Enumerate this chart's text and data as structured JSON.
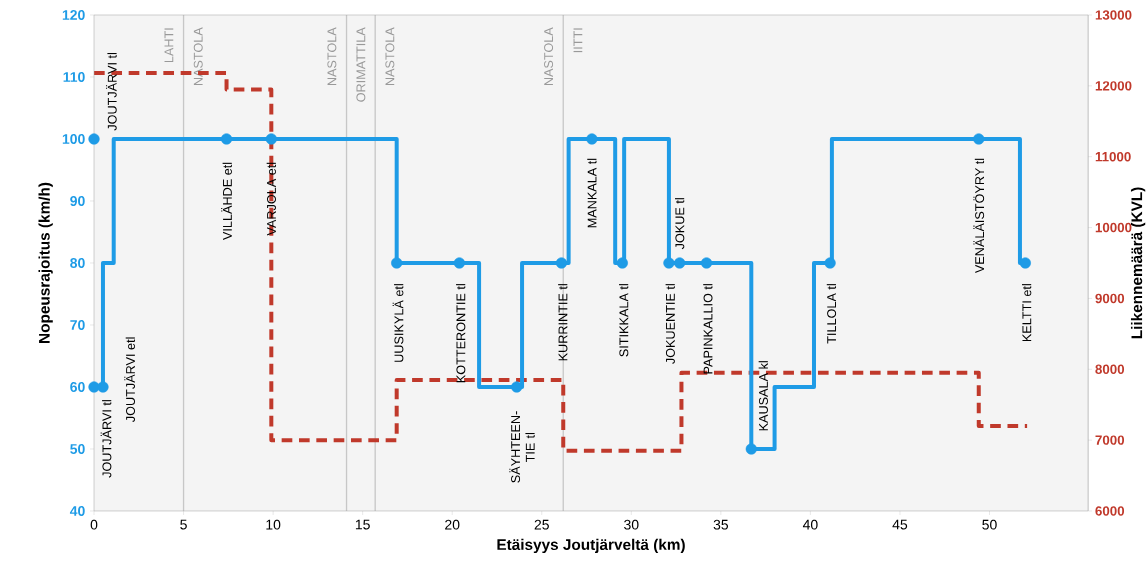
{
  "chart_data": {
    "type": "step",
    "xlabel": "Etäisyys Joutjärveltä (km)",
    "ylabel": "Nopeusrajoitus (km/h)",
    "y2label": "Liikennemäärä (KVL)",
    "xlim": [
      0,
      55.5
    ],
    "xticks": [
      0,
      5,
      10,
      15,
      20,
      25,
      30,
      35,
      40,
      45,
      50
    ],
    "ylim": [
      40,
      120
    ],
    "yticks": [
      40,
      50,
      60,
      70,
      80,
      90,
      100,
      110,
      120
    ],
    "y2lim": [
      6000,
      13000
    ],
    "y2ticks": [
      6000,
      7000,
      8000,
      9000,
      10000,
      11000,
      12000,
      13000
    ],
    "series": [
      {
        "axis": "y2",
        "color": "#c0392b",
        "line_style": "dashed",
        "x": [
          0,
          7.4,
          9.9,
          16.9,
          26.2,
          32.8,
          49.4,
          52.1
        ],
        "values": [
          12180,
          11950,
          7000,
          7850,
          6850,
          7950,
          7200,
          7200
        ]
      },
      {
        "color": "#1e9be6",
        "line_style": "solid",
        "x": [
          0,
          0.5,
          1.1,
          16.9,
          21.5,
          23.9,
          26.5,
          29.1,
          29.6,
          32.1,
          36.7,
          38.0,
          40.2,
          41.2,
          51.7,
          52.0
        ],
        "values": [
          60,
          80,
          100,
          80,
          60,
          80,
          100,
          80,
          100,
          80,
          50,
          60,
          80,
          100,
          80,
          80
        ]
      },
      {
        "type": "scatter",
        "color": "#1e9be6",
        "marker": "circle",
        "x": [
          0,
          0,
          20.4,
          23.6,
          26.1,
          27.8,
          29.5,
          32.1,
          32.7,
          34.2,
          36.7,
          41.1,
          49.4
        ],
        "values": [
          60,
          100,
          80,
          60,
          80,
          100,
          80,
          80,
          80,
          80,
          50,
          80,
          100
        ]
      },
      {
        "type": "scatter",
        "color": "#1e9be6",
        "marker": "circle",
        "x": [
          0.5,
          7.4,
          9.9,
          16.9,
          52.0
        ],
        "values": [
          60,
          100,
          100,
          80,
          80
        ]
      }
    ],
    "bands": [
      {
        "axis": "x",
        "from": 0,
        "to": 5.0,
        "label": "LAHTI",
        "color": "#f4f4f4"
      },
      {
        "axis": "x",
        "from": 5.0,
        "to": 14.1,
        "label": "NASTOLA",
        "color": "#f4f4f4"
      },
      {
        "axis": "x",
        "from": 14.1,
        "to": 15.7,
        "label": "ORIMATTILA",
        "color": "#f4f4f4"
      },
      {
        "axis": "x",
        "from": 15.7,
        "to": 26.2,
        "label": "NASTOLA",
        "color": "#f4f4f4"
      },
      {
        "axis": "x",
        "from": 26.2,
        "to": 55.5,
        "label": "IITTI",
        "color": "#f4f4f4"
      }
    ],
    "annotations": [
      {
        "text": "JOUTJÄRVI tl",
        "x": 0,
        "y": 60
      },
      {
        "text": "JOUTJÄRVI etl",
        "x": 0.5,
        "y": 60
      },
      {
        "text": "JOUTJÄRVI tl",
        "x": 0,
        "y": 100
      },
      {
        "text": "VILLÄHDE etl",
        "x": 7.4,
        "y": 100
      },
      {
        "text": "VARJOLA etl",
        "x": 9.9,
        "y": 100
      },
      {
        "text": "UUSIKYLÄ etl",
        "x": 16.9,
        "y": 80
      },
      {
        "text": "KOTTERONTIE tl",
        "x": 20.4,
        "y": 80
      },
      {
        "text": "SÄYHTEEN- TIE tl",
        "x": 23.6,
        "y": 60
      },
      {
        "text": "KURRINTIE tl",
        "x": 26.1,
        "y": 80
      },
      {
        "text": "MANKALA tl",
        "x": 27.8,
        "y": 100
      },
      {
        "text": "SITIKKALA tl",
        "x": 29.5,
        "y": 80
      },
      {
        "text": "JOKUENTIE tl",
        "x": 32.1,
        "y": 80
      },
      {
        "text": "JOKUE tl",
        "x": 32.7,
        "y": 80
      },
      {
        "text": "PAPINKALLIO tl",
        "x": 34.2,
        "y": 80
      },
      {
        "text": "KAUSALA kl",
        "x": 36.7,
        "y": 50
      },
      {
        "text": "TILLOLA tl",
        "x": 41.1,
        "y": 80
      },
      {
        "text": "VENÄLÄISTÖYRY tl",
        "x": 49.4,
        "y": 100
      },
      {
        "text": "KELTTI etl",
        "x": 52.0,
        "y": 80
      }
    ]
  }
}
